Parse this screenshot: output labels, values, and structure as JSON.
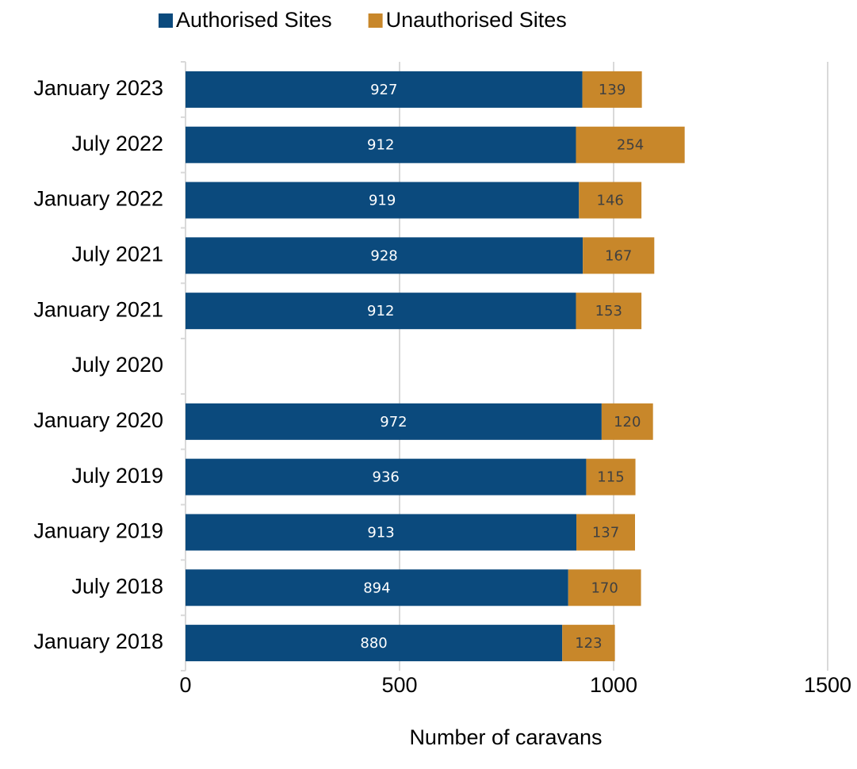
{
  "chart_data": {
    "type": "stacked_barh",
    "xlabel": "Number of caravans",
    "categories": [
      "January 2023",
      "July 2022",
      "January 2022",
      "July 2021",
      "January 2021",
      "July 2020",
      "January 2020",
      "July 2019",
      "January 2019",
      "July 2018",
      "January 2018"
    ],
    "series": [
      {
        "name": "Authorised Sites",
        "color": "#0b4a7d",
        "values": [
          927,
          912,
          919,
          928,
          912,
          null,
          972,
          936,
          913,
          894,
          880
        ]
      },
      {
        "name": "Unauthorised Sites",
        "color": "#c8872a",
        "values": [
          139,
          254,
          146,
          167,
          153,
          null,
          120,
          115,
          137,
          170,
          123
        ]
      }
    ],
    "xlim": [
      0,
      1500
    ],
    "xticks": [
      0,
      500,
      1000,
      1500
    ],
    "grid": true,
    "legend": "top"
  }
}
